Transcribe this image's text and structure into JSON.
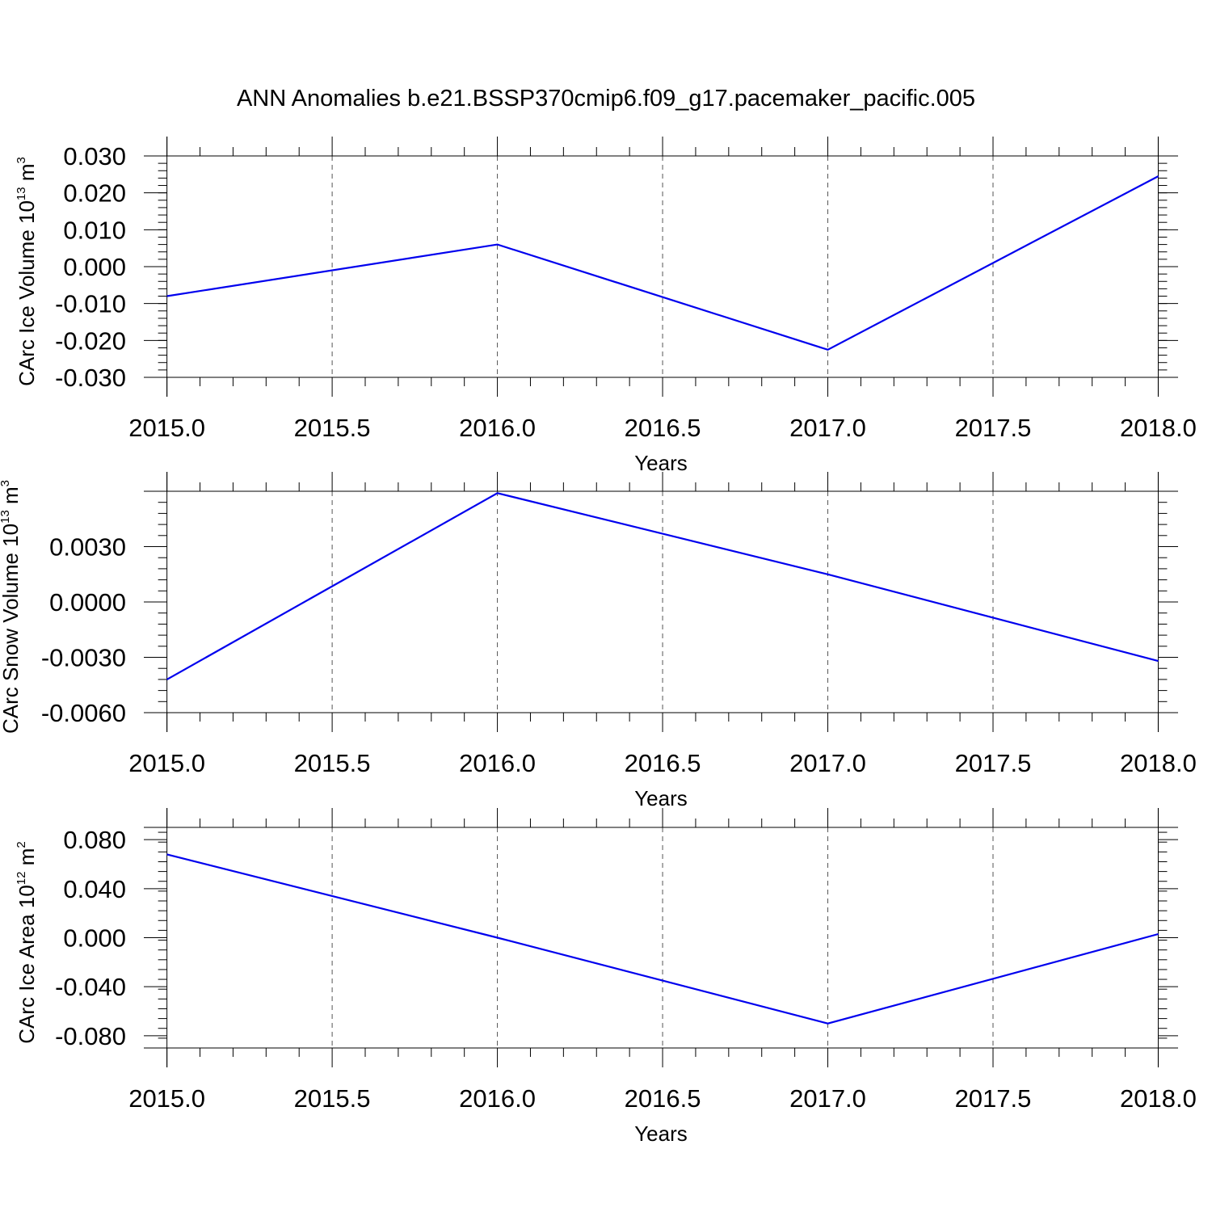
{
  "title": "ANN Anomalies b.e21.BSSP370cmip6.f09_g17.pacemaker_pacific.005",
  "colors": {
    "series": "#0000ee",
    "axis": "#000000",
    "grid": "#555555"
  },
  "chart_data": [
    {
      "type": "line",
      "ylabel": {
        "text": "CArc Ice Volume 10",
        "sup": "13",
        "unit": " m",
        "unit_sup": "3"
      },
      "xlabel": "Years",
      "x": [
        2015,
        2016,
        2017,
        2018
      ],
      "values": [
        -0.008,
        0.006,
        -0.0225,
        0.0245
      ],
      "xlim": [
        2014.93,
        2018.06
      ],
      "ylim": [
        -0.03,
        0.03
      ],
      "xticks": [
        "2015.0",
        "2015.5",
        "2016.0",
        "2016.5",
        "2017.0",
        "2017.5",
        "2018.0"
      ],
      "yticks": [
        "0.030",
        "0.020",
        "0.010",
        "0.000",
        "-0.010",
        "-0.020",
        "-0.030"
      ],
      "grid": "vertical dashed"
    },
    {
      "type": "line",
      "ylabel": {
        "text": "CArc Snow Volume 10",
        "sup": "13",
        "unit": " m",
        "unit_sup": "3"
      },
      "xlabel": "Years",
      "x": [
        2015,
        2016,
        2017,
        2018
      ],
      "values": [
        -0.0042,
        0.0059,
        0.0015,
        -0.0032
      ],
      "xlim": [
        2014.93,
        2018.06
      ],
      "ylim": [
        -0.006,
        0.006
      ],
      "xticks": [
        "2015.0",
        "2015.5",
        "2016.0",
        "2016.5",
        "2017.0",
        "2017.5",
        "2018.0"
      ],
      "yticks": [
        "0.0030",
        "0.0000",
        "-0.0030",
        "-0.0060"
      ],
      "grid": "vertical dashed"
    },
    {
      "type": "line",
      "ylabel": {
        "text": "CArc Ice Area 10",
        "sup": "12",
        "unit": " m",
        "unit_sup": "2"
      },
      "xlabel": "Years",
      "x": [
        2015,
        2016,
        2017,
        2018
      ],
      "values": [
        0.068,
        0.0,
        -0.07,
        0.003
      ],
      "xlim": [
        2014.93,
        2018.06
      ],
      "ylim": [
        -0.09,
        0.09
      ],
      "xticks": [
        "2015.0",
        "2015.5",
        "2016.0",
        "2016.5",
        "2017.0",
        "2017.5",
        "2018.0"
      ],
      "yticks": [
        "0.080",
        "0.040",
        "0.000",
        "-0.040",
        "-0.080"
      ],
      "grid": "vertical dashed"
    }
  ]
}
